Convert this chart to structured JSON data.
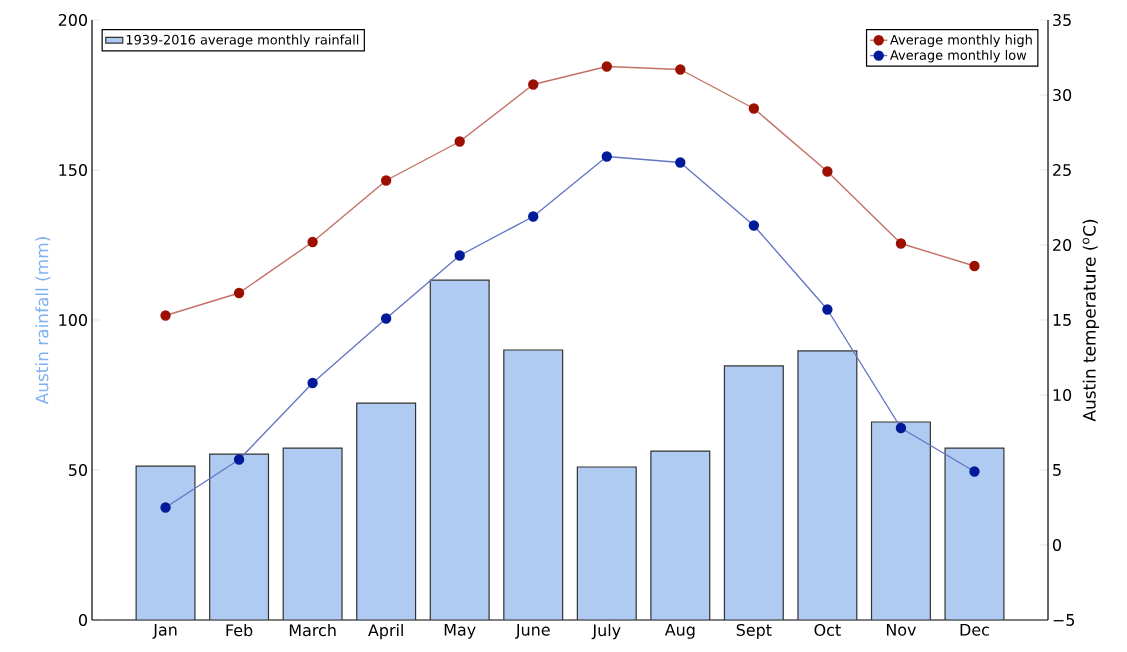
{
  "chart_data": {
    "type": "bar",
    "categories": [
      "Jan",
      "Feb",
      "March",
      "April",
      "May",
      "June",
      "July",
      "Aug",
      "Sept",
      "Oct",
      "Nov",
      "Dec"
    ],
    "ylabel": "Austin rainfall (mm)",
    "y2label": "Austin temperature ($^{o}$C)",
    "ylim": [
      0,
      200
    ],
    "yticks": [
      0,
      50,
      100,
      150,
      200
    ],
    "y2lim": [
      -5,
      35
    ],
    "y2ticks": [
      {
        "value": -5,
        "label": "−5"
      },
      0,
      5,
      10,
      15,
      20,
      25,
      30,
      35
    ],
    "legend": "top",
    "marker": "circle",
    "series": [
      {
        "name": "1939-2016 average monthly rainfall",
        "color": "#b0cbf2",
        "values": [
          51.3,
          55.3,
          57.3,
          72.3,
          113.3,
          90,
          51,
          56.3,
          84.7,
          89.7,
          66,
          57.3
        ]
      },
      {
        "name": "Average monthly high",
        "type": "line",
        "axis": "y2",
        "color": "#9b1000",
        "values": [
          15.3,
          16.8,
          20.2,
          24.3,
          26.9,
          30.7,
          31.9,
          31.7,
          29.1,
          24.9,
          20.1,
          18.6
        ]
      },
      {
        "name": "Average monthly low",
        "type": "line",
        "axis": "y2",
        "color": "#001a99",
        "values": [
          2.5,
          5.7,
          10.8,
          15.1,
          19.3,
          21.9,
          25.9,
          25.5,
          21.3,
          15.7,
          7.8,
          4.9
        ]
      }
    ]
  }
}
